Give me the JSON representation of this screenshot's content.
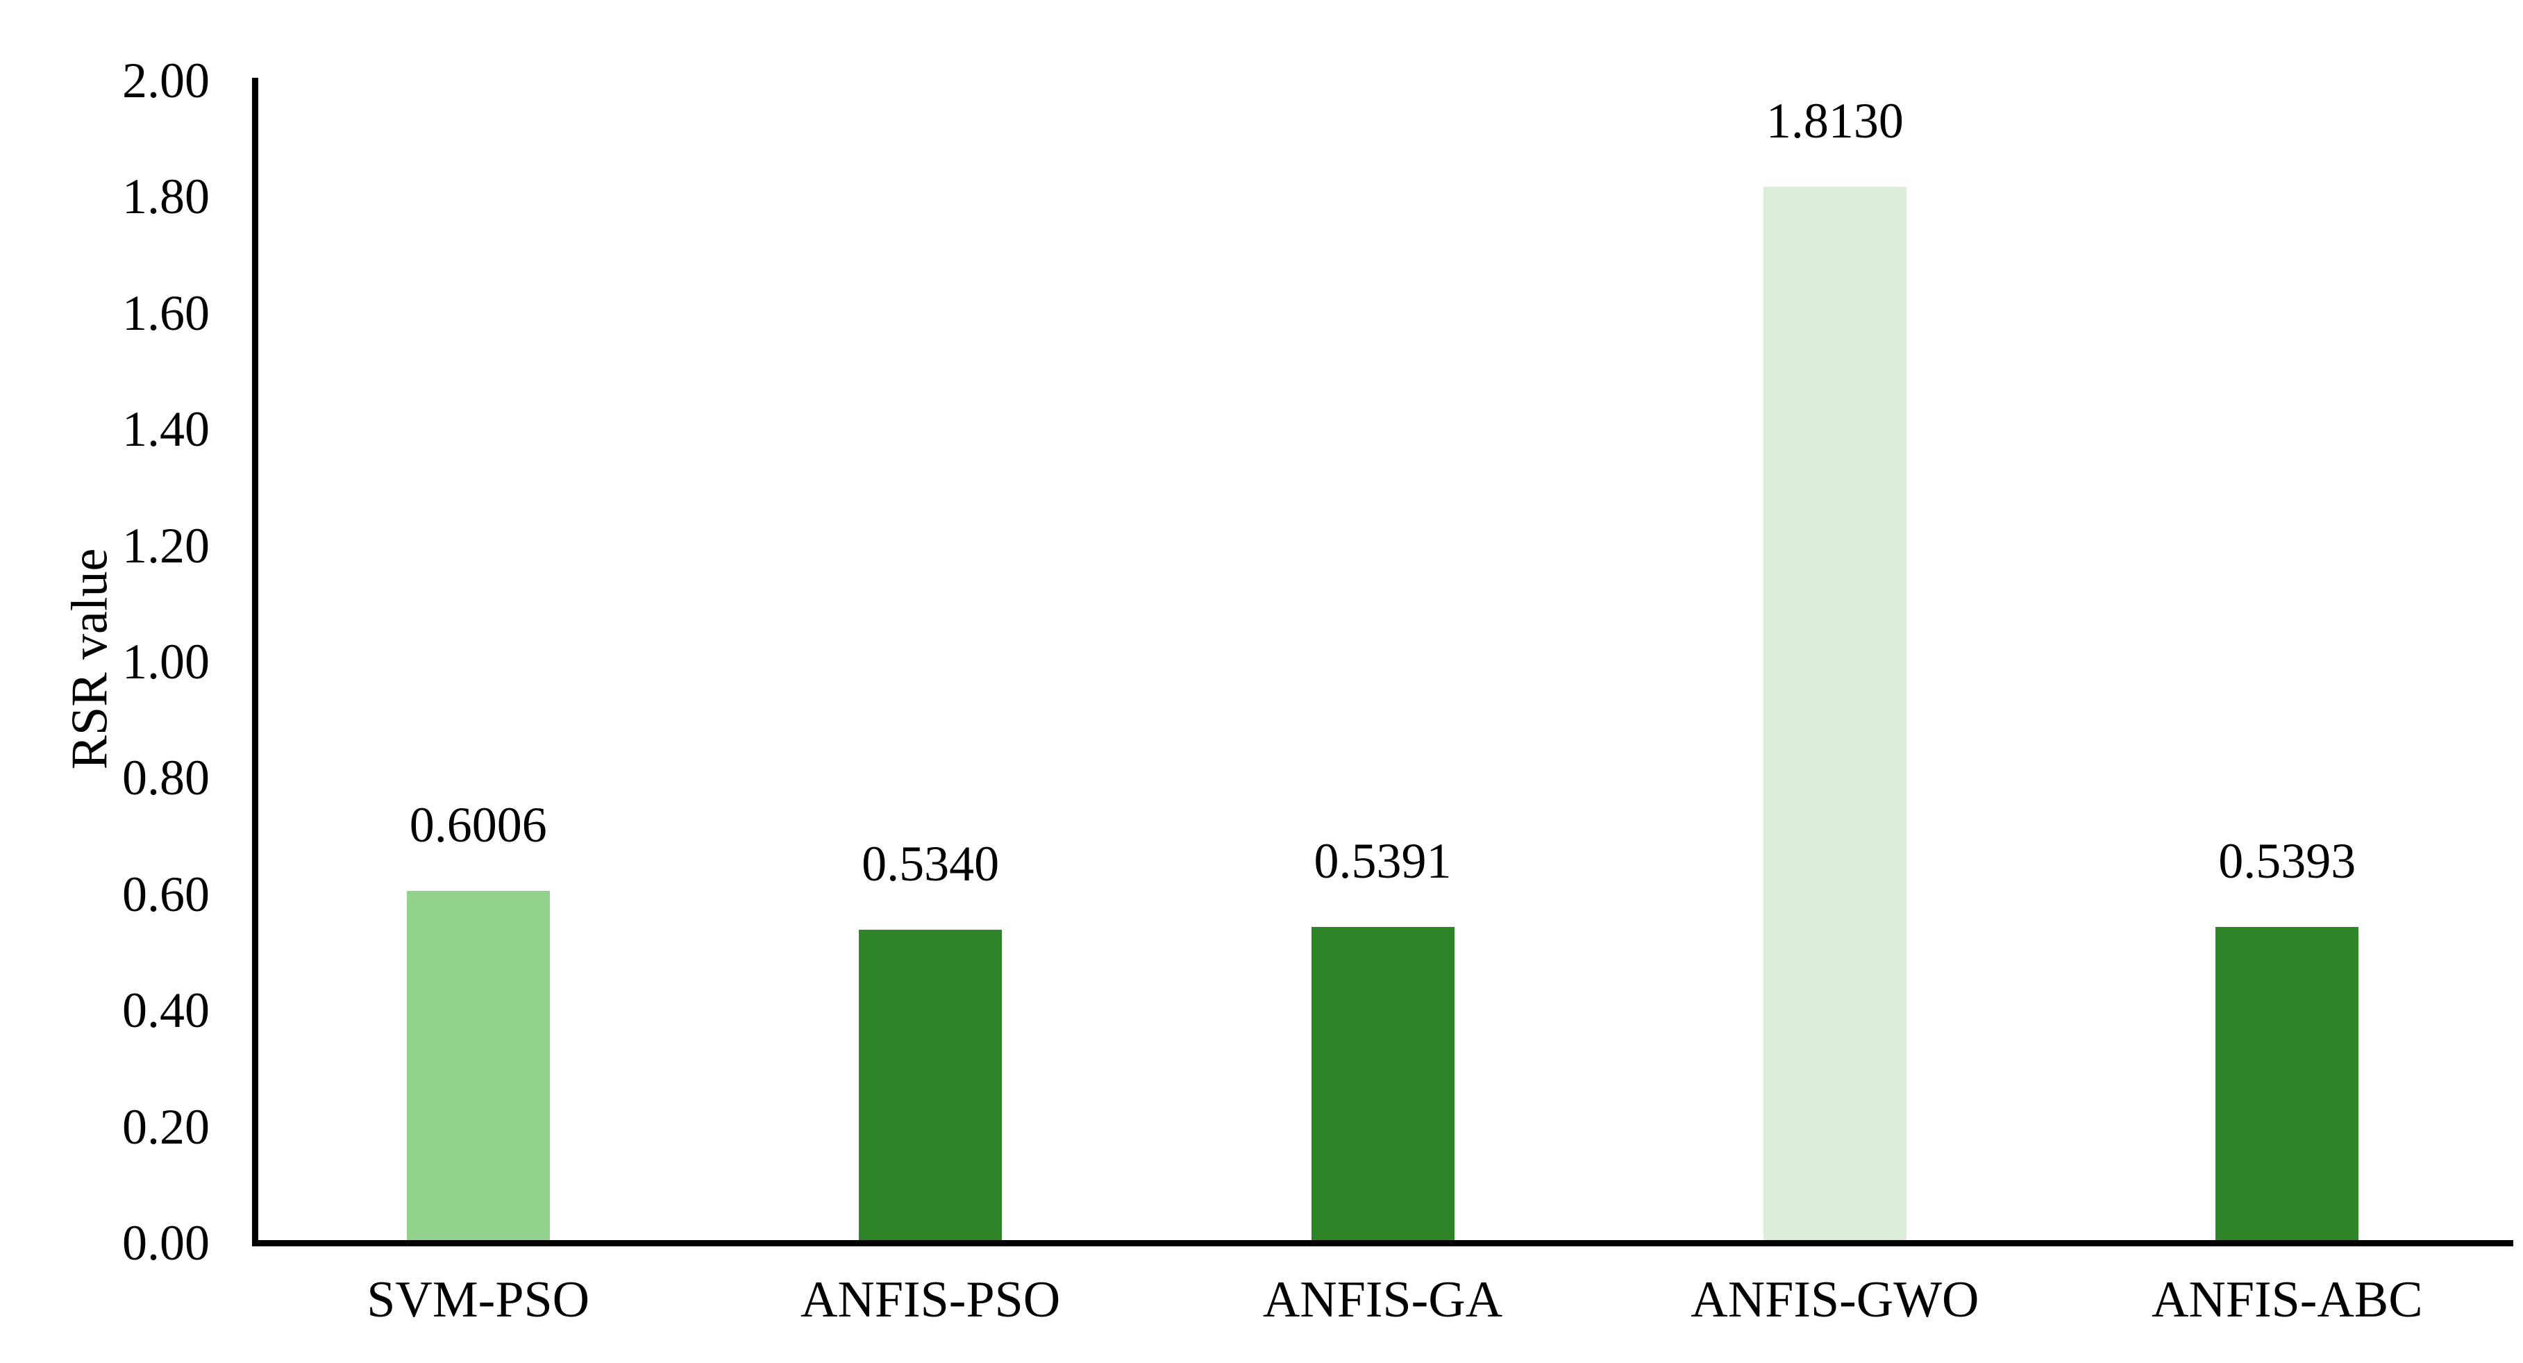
{
  "chart_data": {
    "type": "bar",
    "title": "",
    "categories": [
      "SVM-PSO",
      "ANFIS-PSO",
      "ANFIS-GA",
      "ANFIS-GWO",
      "ANFIS-ABC"
    ],
    "values": [
      0.6006,
      0.534,
      0.5391,
      1.813,
      0.5393
    ],
    "value_labels": [
      "0.6006",
      "0.5340",
      "0.5391",
      "1.8130",
      "0.5393"
    ],
    "bar_colors": [
      "#93D28C",
      "#2E8528",
      "#2E8528",
      "#DCEEDA",
      "#2E8528"
    ],
    "xlabel": "",
    "ylabel": "RSR value",
    "ylim": [
      0,
      2
    ],
    "y_tick_labels": [
      "2.00",
      "1.80",
      "1.60",
      "1.40",
      "1.20",
      "1.00",
      "0.80",
      "0.60",
      "0.40",
      "0.20",
      "0.00"
    ],
    "y_tick_values": [
      2.0,
      1.8,
      1.6,
      1.4,
      1.2,
      1.0,
      0.8,
      0.6,
      0.4,
      0.2,
      0.0
    ],
    "grid": false,
    "legend": false,
    "axis_color": "#000000",
    "text_color": "#000000",
    "background": "#FFFFFF"
  }
}
